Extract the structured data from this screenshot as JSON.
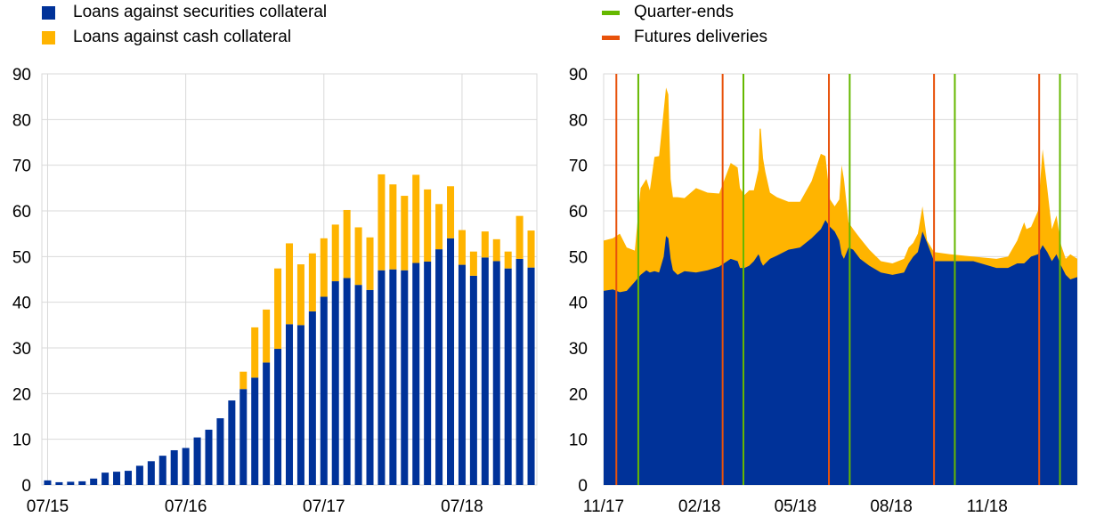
{
  "colors": {
    "securities": "#003299",
    "cash": "#ffb400",
    "quarter_end": "#65b800",
    "futures": "#e8520b",
    "grid": "#d9d9d9"
  },
  "legend_left": [
    {
      "label": "Loans against securities collateral",
      "color": "#003299"
    },
    {
      "label": "Loans against cash collateral",
      "color": "#ffb400"
    }
  ],
  "legend_right": [
    {
      "label": "Quarter-ends",
      "color": "#65b800"
    },
    {
      "label": "Futures deliveries",
      "color": "#e8520b"
    }
  ],
  "chart_data": [
    {
      "type": "bar",
      "stacked": true,
      "title": "",
      "xlabel": "",
      "ylabel": "",
      "ylim": [
        0,
        90
      ],
      "yticks": [
        0,
        10,
        20,
        30,
        40,
        50,
        60,
        70,
        80,
        90
      ],
      "grid": true,
      "x_ticks": [
        {
          "label": "07/15",
          "index": 0
        },
        {
          "label": "07/16",
          "index": 12
        },
        {
          "label": "07/17",
          "index": 24
        },
        {
          "label": "07/18",
          "index": 36
        }
      ],
      "series": [
        {
          "name": "Loans against securities collateral",
          "values": [
            1.0,
            0.6,
            0.7,
            0.8,
            1.4,
            2.7,
            2.9,
            3.1,
            4.2,
            5.2,
            6.4,
            7.6,
            8.1,
            10.4,
            12.1,
            14.6,
            18.5,
            21.0,
            23.5,
            26.8,
            29.8,
            35.2,
            35.0,
            38.0,
            41.2,
            44.6,
            45.3,
            43.8,
            42.7,
            47.0,
            47.2,
            47.0,
            48.6,
            48.9,
            51.6,
            54.0,
            48.2,
            45.8,
            49.8,
            49.0,
            47.4,
            49.5,
            47.6
          ]
        },
        {
          "name": "Loans against cash collateral",
          "values": [
            0,
            0,
            0,
            0,
            0,
            0,
            0,
            0,
            0,
            0,
            0,
            0,
            0,
            0,
            0,
            0,
            0,
            3.8,
            11.0,
            11.6,
            17.6,
            17.7,
            13.3,
            12.7,
            12.8,
            12.4,
            14.9,
            12.6,
            11.5,
            21.0,
            18.6,
            16.3,
            19.3,
            15.8,
            9.9,
            11.4,
            7.6,
            5.3,
            5.7,
            4.8,
            3.7,
            9.4,
            8.1
          ]
        }
      ]
    },
    {
      "type": "area",
      "stacked": true,
      "title": "",
      "xlabel": "",
      "ylabel": "",
      "ylim": [
        0,
        90
      ],
      "xlim": [
        0,
        410
      ],
      "x_unit": "days since 11/17",
      "yticks": [
        0,
        10,
        20,
        30,
        40,
        50,
        60,
        70,
        80,
        90
      ],
      "grid": true,
      "x_ticks": [
        {
          "label": "11/17",
          "x": 0
        },
        {
          "label": "02/18",
          "x": 83
        },
        {
          "label": "05/18",
          "x": 166
        },
        {
          "label": "08/18",
          "x": 249
        },
        {
          "label": "11/18",
          "x": 332
        }
      ],
      "series": [
        {
          "name": "Loans against securities collateral",
          "x": [
            0,
            8,
            14,
            20,
            27,
            32,
            37,
            40,
            44,
            48,
            52,
            54,
            56,
            58,
            60,
            64,
            70,
            80,
            90,
            100,
            110,
            116,
            118,
            122,
            126,
            130,
            134,
            135,
            136,
            138,
            140,
            144,
            150,
            160,
            170,
            180,
            188,
            192,
            196,
            200,
            204,
            206,
            208,
            212,
            216,
            222,
            230,
            240,
            250,
            260,
            264,
            268,
            272,
            276,
            280,
            286,
            300,
            320,
            340,
            350,
            358,
            364,
            366,
            370,
            376,
            380,
            384,
            388,
            392,
            396,
            400,
            404,
            410
          ],
          "y": [
            42.5,
            42.8,
            42.2,
            42.5,
            44.5,
            46.0,
            47.0,
            46.5,
            46.8,
            46.5,
            50.0,
            54.5,
            54.0,
            49.5,
            47.0,
            46.0,
            46.8,
            46.5,
            47.0,
            47.8,
            49.5,
            49.0,
            47.5,
            47.5,
            48.0,
            49.0,
            50.5,
            50.0,
            49.0,
            48.0,
            48.5,
            49.5,
            50.2,
            51.5,
            52.0,
            54.0,
            56.0,
            58.0,
            56.5,
            55.5,
            53.5,
            50.5,
            49.5,
            52.0,
            51.5,
            49.5,
            48.0,
            46.5,
            46.0,
            46.5,
            48.5,
            50.0,
            51.0,
            55.5,
            53.0,
            49.0,
            49.0,
            49.0,
            47.5,
            47.5,
            48.5,
            48.5,
            49.0,
            50.0,
            50.5,
            52.5,
            51.0,
            49.0,
            50.5,
            48.0,
            46.0,
            45.0,
            45.5
          ]
        },
        {
          "name": "Loans against cash collateral",
          "x": [
            0,
            8,
            14,
            20,
            27,
            32,
            37,
            40,
            44,
            48,
            52,
            54,
            56,
            58,
            60,
            64,
            70,
            80,
            90,
            100,
            110,
            116,
            118,
            122,
            126,
            130,
            134,
            135,
            136,
            138,
            140,
            144,
            150,
            160,
            170,
            180,
            188,
            192,
            196,
            200,
            204,
            206,
            208,
            212,
            216,
            222,
            230,
            240,
            250,
            260,
            264,
            268,
            272,
            276,
            280,
            286,
            300,
            320,
            340,
            350,
            358,
            364,
            366,
            370,
            376,
            380,
            384,
            388,
            392,
            396,
            400,
            404,
            410
          ],
          "y": [
            11.0,
            11.2,
            12.8,
            9.5,
            6.8,
            19.0,
            20.0,
            18.0,
            25.0,
            25.5,
            32.0,
            32.5,
            31.5,
            17.5,
            16.0,
            17.0,
            16.0,
            18.5,
            17.0,
            16.0,
            21.0,
            20.5,
            17.5,
            16.0,
            16.5,
            15.5,
            18.5,
            28.0,
            29.0,
            23.5,
            20.0,
            14.5,
            12.8,
            10.5,
            10.0,
            12.5,
            16.5,
            14.0,
            6.0,
            5.5,
            9.0,
            19.5,
            17.5,
            5.5,
            4.5,
            4.5,
            3.5,
            2.5,
            2.5,
            3.0,
            3.5,
            3.0,
            4.0,
            5.5,
            0.5,
            2.0,
            1.5,
            1.0,
            2.0,
            2.5,
            5.0,
            9.0,
            7.0,
            6.5,
            9.5,
            21.0,
            14.0,
            7.0,
            8.5,
            4.5,
            3.5,
            5.5,
            4.0
          ]
        }
      ],
      "markers": {
        "quarter_ends": [
          30,
          121,
          213,
          304,
          395
        ],
        "futures_deliveries": [
          11,
          103,
          195,
          286,
          377
        ]
      }
    }
  ]
}
